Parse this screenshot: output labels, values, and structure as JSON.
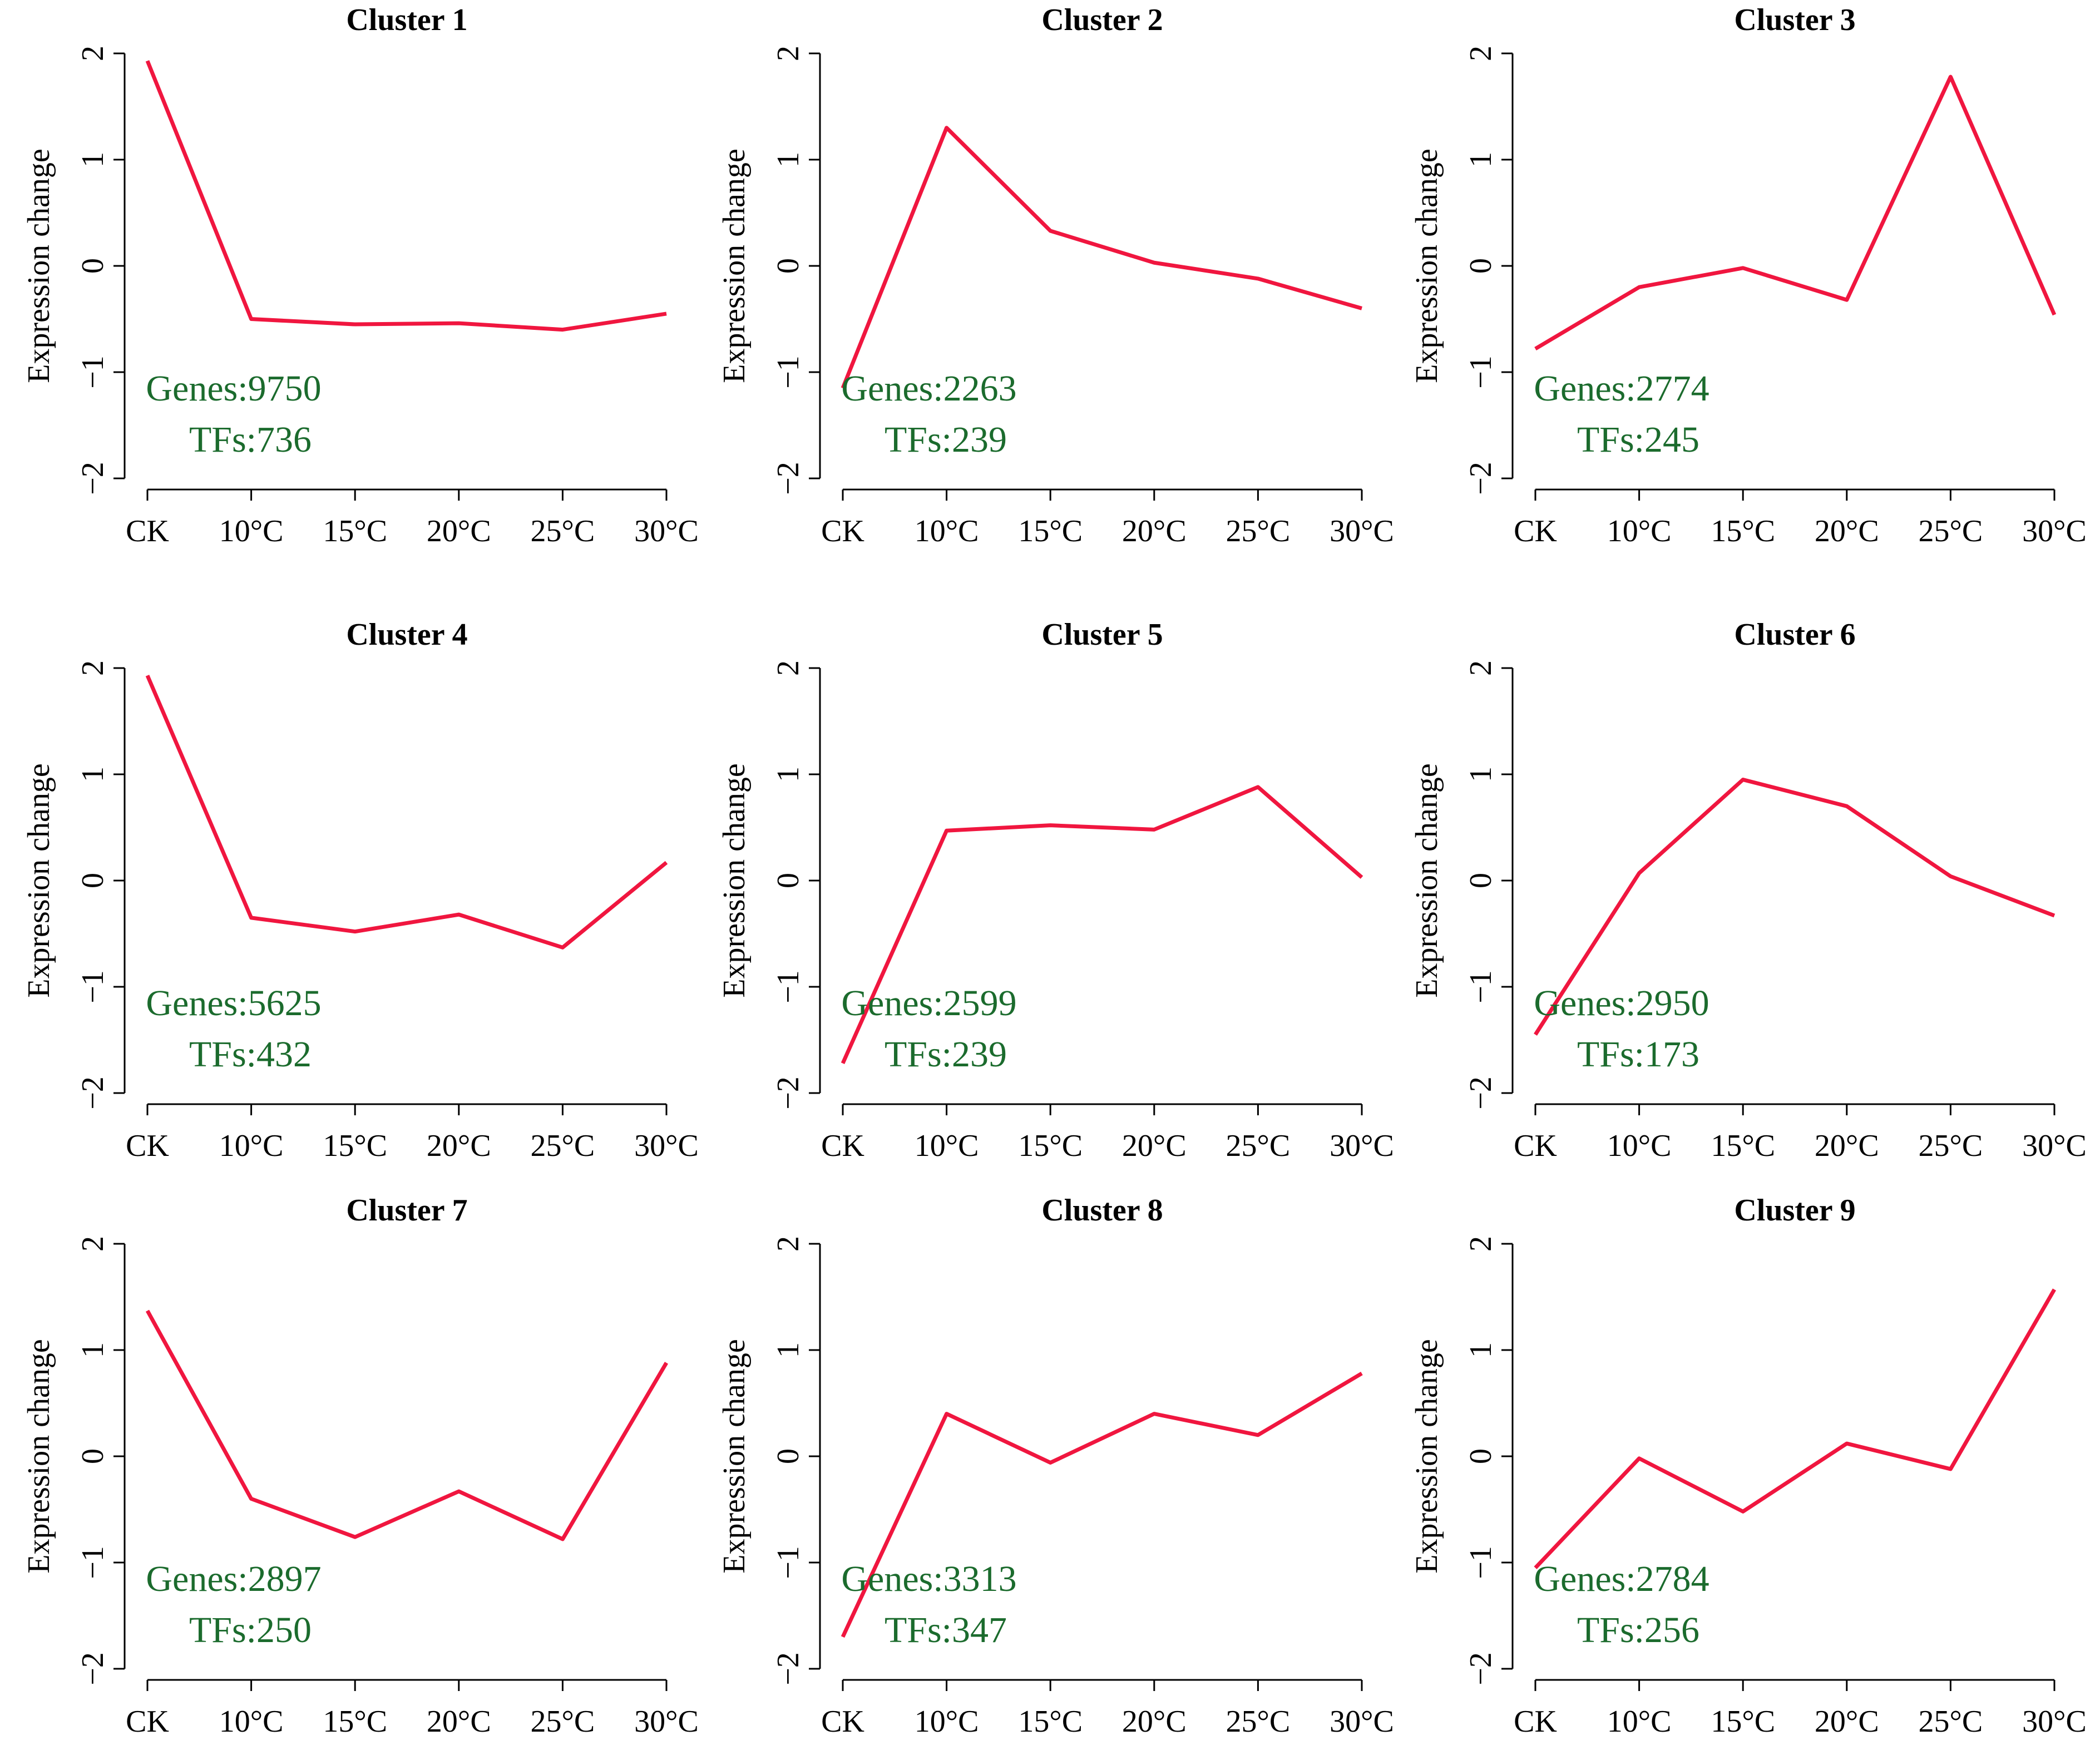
{
  "chart_data": [
    {
      "type": "line",
      "title": "Cluster 1",
      "ylabel": "Expression change",
      "categories": [
        "CK",
        "10°C",
        "15°C",
        "20°C",
        "25°C",
        "30°C"
      ],
      "values": [
        1.93,
        -0.5,
        -0.55,
        -0.54,
        -0.6,
        -0.45
      ],
      "color": "#f0163f",
      "ylim": [
        -2,
        2
      ],
      "yticks": [
        {
          "value": -2,
          "label": "−2"
        },
        {
          "value": -1,
          "label": "−1"
        },
        0,
        1,
        2
      ],
      "annotations": [
        "Genes:9750",
        "TFs:736"
      ],
      "annotation_color": "#1b6b2d"
    },
    {
      "type": "line",
      "title": "Cluster 2",
      "ylabel": "Expression change",
      "categories": [
        "CK",
        "10°C",
        "15°C",
        "20°C",
        "25°C",
        "30°C"
      ],
      "values": [
        -1.15,
        1.3,
        0.33,
        0.03,
        -0.12,
        -0.4
      ],
      "color": "#f0163f",
      "ylim": [
        -2,
        2
      ],
      "yticks": [
        {
          "value": -2,
          "label": "−2"
        },
        {
          "value": -1,
          "label": "−1"
        },
        0,
        1,
        2
      ],
      "annotations": [
        "Genes:2263",
        "TFs:239"
      ],
      "annotation_color": "#1b6b2d"
    },
    {
      "type": "line",
      "title": "Cluster 3",
      "ylabel": "Expression change",
      "categories": [
        "CK",
        "10°C",
        "15°C",
        "20°C",
        "25°C",
        "30°C"
      ],
      "values": [
        -0.78,
        -0.2,
        -0.02,
        -0.32,
        1.78,
        -0.46
      ],
      "color": "#f0163f",
      "ylim": [
        -2,
        2
      ],
      "yticks": [
        {
          "value": -2,
          "label": "−2"
        },
        {
          "value": -1,
          "label": "−1"
        },
        0,
        1,
        2
      ],
      "annotations": [
        "Genes:2774",
        "TFs:245"
      ],
      "annotation_color": "#1b6b2d"
    },
    {
      "type": "line",
      "title": "Cluster 4",
      "ylabel": "Expression change",
      "categories": [
        "CK",
        "10°C",
        "15°C",
        "20°C",
        "25°C",
        "30°C"
      ],
      "values": [
        1.93,
        -0.35,
        -0.48,
        -0.32,
        -0.63,
        0.17
      ],
      "color": "#f0163f",
      "ylim": [
        -2,
        2
      ],
      "yticks": [
        {
          "value": -2,
          "label": "−2"
        },
        {
          "value": -1,
          "label": "−1"
        },
        0,
        1,
        2
      ],
      "annotations": [
        "Genes:5625",
        "TFs:432"
      ],
      "annotation_color": "#1b6b2d"
    },
    {
      "type": "line",
      "title": "Cluster 5",
      "ylabel": "Expression change",
      "categories": [
        "CK",
        "10°C",
        "15°C",
        "20°C",
        "25°C",
        "30°C"
      ],
      "values": [
        -1.72,
        0.47,
        0.52,
        0.48,
        0.88,
        0.03
      ],
      "color": "#f0163f",
      "ylim": [
        -2,
        2
      ],
      "yticks": [
        {
          "value": -2,
          "label": "−2"
        },
        {
          "value": -1,
          "label": "−1"
        },
        0,
        1,
        2
      ],
      "annotations": [
        "Genes:2599",
        "TFs:239"
      ],
      "annotation_color": "#1b6b2d"
    },
    {
      "type": "line",
      "title": "Cluster 6",
      "ylabel": "Expression change",
      "categories": [
        "CK",
        "10°C",
        "15°C",
        "20°C",
        "25°C",
        "30°C"
      ],
      "values": [
        -1.45,
        0.07,
        0.95,
        0.7,
        0.04,
        -0.33
      ],
      "color": "#f0163f",
      "ylim": [
        -2,
        2
      ],
      "yticks": [
        {
          "value": -2,
          "label": "−2"
        },
        {
          "value": -1,
          "label": "−1"
        },
        0,
        1,
        2
      ],
      "annotations": [
        "Genes:2950",
        "TFs:173"
      ],
      "annotation_color": "#1b6b2d"
    },
    {
      "type": "line",
      "title": "Cluster 7",
      "ylabel": "Expression change",
      "categories": [
        "CK",
        "10°C",
        "15°C",
        "20°C",
        "25°C",
        "30°C"
      ],
      "values": [
        1.37,
        -0.4,
        -0.76,
        -0.33,
        -0.78,
        0.88
      ],
      "color": "#f0163f",
      "ylim": [
        -2,
        2
      ],
      "yticks": [
        {
          "value": -2,
          "label": "−2"
        },
        {
          "value": -1,
          "label": "−1"
        },
        0,
        1,
        2
      ],
      "annotations": [
        "Genes:2897",
        "TFs:250"
      ],
      "annotation_color": "#1b6b2d"
    },
    {
      "type": "line",
      "title": "Cluster 8",
      "ylabel": "Expression change",
      "categories": [
        "CK",
        "10°C",
        "15°C",
        "20°C",
        "25°C",
        "30°C"
      ],
      "values": [
        -1.7,
        0.4,
        -0.06,
        0.4,
        0.2,
        0.78
      ],
      "color": "#f0163f",
      "ylim": [
        -2,
        2
      ],
      "yticks": [
        {
          "value": -2,
          "label": "−2"
        },
        {
          "value": -1,
          "label": "−1"
        },
        0,
        1,
        2
      ],
      "annotations": [
        "Genes:3313",
        "TFs:347"
      ],
      "annotation_color": "#1b6b2d"
    },
    {
      "type": "line",
      "title": "Cluster 9",
      "ylabel": "Expression change",
      "categories": [
        "CK",
        "10°C",
        "15°C",
        "20°C",
        "25°C",
        "30°C"
      ],
      "values": [
        -1.05,
        -0.02,
        -0.52,
        0.12,
        -0.12,
        1.57
      ],
      "color": "#f0163f",
      "ylim": [
        -2,
        2
      ],
      "yticks": [
        {
          "value": -2,
          "label": "−2"
        },
        {
          "value": -1,
          "label": "−1"
        },
        0,
        1,
        2
      ],
      "annotations": [
        "Genes:2784",
        "TFs:256"
      ],
      "annotation_color": "#1b6b2d"
    }
  ]
}
